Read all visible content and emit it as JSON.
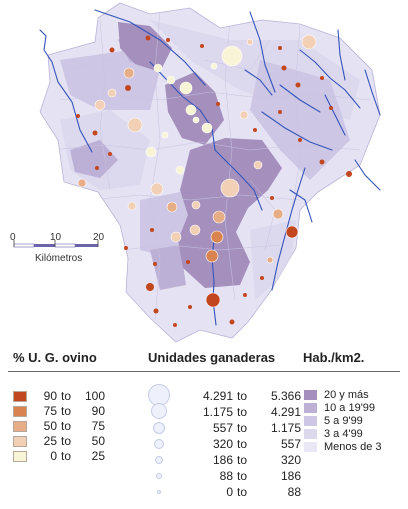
{
  "map": {
    "scale": {
      "ticks": [
        "0",
        "10",
        "20"
      ],
      "unit": "Kilómetros"
    }
  },
  "legend_ovino": {
    "title": "% U. G. ovino",
    "classes": [
      {
        "from": "90",
        "to": "100",
        "color": "#c2461e"
      },
      {
        "from": "75",
        "to": "90",
        "color": "#d9834f"
      },
      {
        "from": "50",
        "to": "75",
        "color": "#e6ad87"
      },
      {
        "from": "25",
        "to": "50",
        "color": "#f1d0b6"
      },
      {
        "from": "0",
        "to": "25",
        "color": "#f7f5d6"
      }
    ],
    "connector": "to"
  },
  "legend_unidades": {
    "title": "Unidades ganaderas",
    "classes": [
      {
        "from": "4.291",
        "to": "5.366"
      },
      {
        "from": "1.175",
        "to": "4.291"
      },
      {
        "from": "557",
        "to": "1.175"
      },
      {
        "from": "320",
        "to": "557"
      },
      {
        "from": "186",
        "to": "320"
      },
      {
        "from": "88",
        "to": "186"
      },
      {
        "from": "0",
        "to": "88"
      }
    ],
    "connector": "to"
  },
  "legend_hab": {
    "title": "Hab./km2.",
    "classes": [
      {
        "label": "20 y más",
        "color": "#a48fbd"
      },
      {
        "label": "10 a 19'99",
        "color": "#bdb0d6"
      },
      {
        "label": "5 a   9'99",
        "color": "#cdc6e4"
      },
      {
        "label": "3 a   4'99",
        "color": "#dcd8ee"
      },
      {
        "label": "Menos de 3",
        "color": "#e9e7f5"
      }
    ]
  }
}
